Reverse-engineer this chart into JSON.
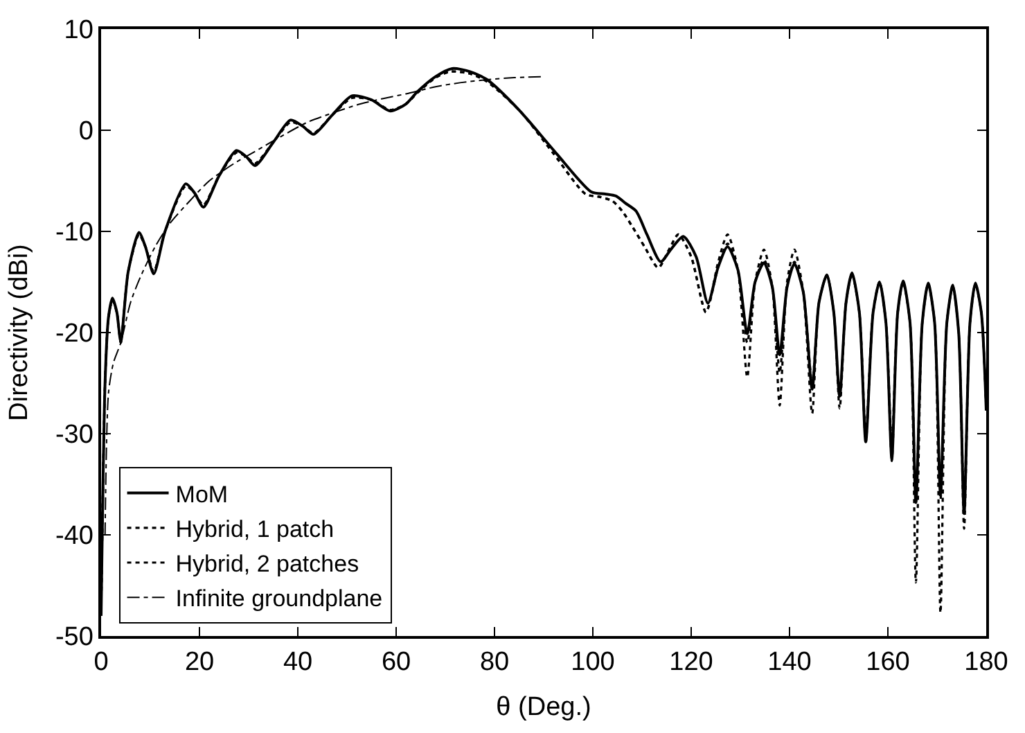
{
  "chart_data": {
    "type": "line",
    "xlabel": "θ (Deg.)",
    "ylabel": "Directivity (dBi)",
    "xlim": [
      0,
      180
    ],
    "xticks": [
      0,
      20,
      40,
      60,
      80,
      100,
      120,
      140,
      160,
      180
    ],
    "ylim": [
      -50,
      10
    ],
    "yticks": [
      -50,
      -40,
      -30,
      -20,
      -10,
      0,
      10
    ],
    "legend": "bottom left",
    "marker": "none",
    "series": [
      {
        "name": "MoM",
        "color": "#000000",
        "line_style": "solid",
        "x": [
          0,
          0.8,
          1.5,
          2.3,
          3.2,
          4,
          5.5,
          7.7,
          9,
          10.7,
          13,
          17.2,
          19,
          20.8,
          24,
          27.5,
          29.5,
          31.3,
          35,
          38.5,
          41,
          43.2,
          47,
          51,
          55,
          58.8,
          62,
          64.3,
          68,
          71.4,
          75,
          78.5,
          85,
          92.6,
          99.7,
          102.5,
          104.7,
          106.6,
          108.8,
          111,
          113.8,
          116,
          118.4,
          121,
          123.4,
          125.5,
          127.4,
          129.5,
          131.4,
          133,
          134.8,
          136.5,
          138,
          139.5,
          141,
          142.8,
          144.6,
          146,
          147.6,
          149,
          150.2,
          151.5,
          152.7,
          154.2,
          155.5,
          157,
          158.3,
          159.6,
          160.8,
          162,
          163.1,
          164.5,
          165.7,
          167,
          168.2,
          169.5,
          170.7,
          172,
          173.2,
          174.4,
          175.5,
          176.7,
          177.8,
          179,
          180
        ],
        "values": [
          -48,
          -25,
          -18.5,
          -16.6,
          -18,
          -20.9,
          -14,
          -10.1,
          -11.5,
          -14.2,
          -10,
          -5.3,
          -6.2,
          -7.6,
          -4.5,
          -2.0,
          -2.6,
          -3.5,
          -1.2,
          1.0,
          0.4,
          -0.4,
          1.5,
          3.4,
          3.0,
          1.9,
          2.6,
          3.8,
          5.3,
          6.1,
          5.8,
          5.0,
          2.0,
          -2.3,
          -6.1,
          -6.3,
          -6.5,
          -7.2,
          -8.0,
          -10.3,
          -13.0,
          -11.7,
          -10.5,
          -12.5,
          -17.1,
          -13.5,
          -11.5,
          -13.8,
          -20.1,
          -15,
          -13.1,
          -15.5,
          -22.2,
          -15.5,
          -13.2,
          -16,
          -25.6,
          -17,
          -14.3,
          -18,
          -26.3,
          -17,
          -14.1,
          -18,
          -30.8,
          -18,
          -15,
          -19,
          -32.5,
          -18,
          -14.9,
          -19,
          -36.8,
          -19,
          -15.1,
          -19,
          -36,
          -19,
          -15.3,
          -20,
          -37.9,
          -19,
          -15.1,
          -18,
          -27.7
        ]
      },
      {
        "name": "Hybrid, 1 patch",
        "color": "#000000",
        "line_style": "dotted",
        "x": [
          0,
          0.8,
          1.5,
          2.3,
          3.2,
          4,
          5.5,
          7.7,
          9,
          10.7,
          13,
          17.2,
          19,
          20.8,
          24,
          27.5,
          29.5,
          31.3,
          35,
          38.5,
          41,
          43.2,
          47,
          51,
          55,
          58.8,
          62,
          64.3,
          68,
          71,
          75,
          78.5,
          85,
          92,
          98.5,
          101.5,
          104,
          106,
          108,
          110.5,
          113.3,
          115.5,
          117.4,
          120,
          123,
          125.5,
          127.4,
          129.5,
          131.4,
          133,
          134.8,
          136.5,
          138,
          139.5,
          141,
          142.8,
          144.6,
          146,
          147.6,
          149,
          150.2,
          151.5,
          152.7,
          154.2,
          155.5,
          157,
          158.3,
          159.6,
          160.8,
          162,
          163.1,
          164.5,
          165.7,
          167,
          168.2,
          169.5,
          170.7,
          172,
          173.2,
          174.4,
          175.5,
          176.7,
          177.8,
          179,
          180
        ],
        "values": [
          -48,
          -25,
          -18.5,
          -16.8,
          -18,
          -21,
          -14,
          -10.3,
          -11.5,
          -14,
          -10,
          -5.5,
          -6.2,
          -7.4,
          -4.5,
          -2.2,
          -2.6,
          -3.3,
          -1.2,
          0.8,
          0.4,
          -0.3,
          1.5,
          3.2,
          3.0,
          2.0,
          2.6,
          3.7,
          5.2,
          5.8,
          5.6,
          4.8,
          2.0,
          -2.3,
          -6.3,
          -6.6,
          -7.0,
          -8.0,
          -9.5,
          -11.5,
          -13.6,
          -11.8,
          -10.3,
          -12.5,
          -18,
          -13.0,
          -10.3,
          -13.8,
          -24.4,
          -15,
          -11.8,
          -15.5,
          -27.2,
          -15,
          -11.8,
          -16,
          -28,
          -17,
          -14.3,
          -18,
          -26.5,
          -17,
          -14.2,
          -18,
          -30.8,
          -18,
          -15,
          -19,
          -32.7,
          -18,
          -15,
          -19,
          -44.7,
          -19,
          -15.2,
          -19,
          -47.7,
          -19,
          -15.4,
          -20,
          -39.4,
          -19,
          -15.2,
          -18,
          -27.7
        ]
      },
      {
        "name": "Hybrid, 2 patches",
        "color": "#000000",
        "line_style": "dotted",
        "x": [
          0,
          0.8,
          1.5,
          2.3,
          3.2,
          4,
          5.5,
          7.7,
          9,
          10.7,
          13,
          17.2,
          19,
          20.8,
          24,
          27.5,
          29.5,
          31.3,
          35,
          38.5,
          41,
          43.2,
          47,
          51,
          55,
          58.8,
          62,
          64.3,
          68,
          71,
          75,
          78.5,
          85,
          92,
          98.5,
          101.5,
          104,
          106,
          108,
          110.5,
          113.3,
          115.5,
          117.4,
          120,
          123,
          125.5,
          127.4,
          129.5,
          131.4,
          133,
          134.8,
          136.5,
          138,
          139.5,
          141,
          142.8,
          144.6,
          146,
          147.6,
          149,
          150.2,
          151.5,
          152.7,
          154.2,
          155.5,
          157,
          158.3,
          159.6,
          160.8,
          162,
          163.1,
          164.5,
          165.7,
          167,
          168.2,
          169.5,
          170.7,
          172,
          173.2,
          174.4,
          175.5,
          176.7,
          177.8,
          179,
          180
        ],
        "values": [
          -48,
          -25,
          -18.5,
          -16.8,
          -18,
          -21,
          -14,
          -10.3,
          -11.5,
          -14,
          -10,
          -5.5,
          -6.2,
          -7.4,
          -4.5,
          -2.2,
          -2.6,
          -3.3,
          -1.2,
          0.8,
          0.4,
          -0.3,
          1.5,
          3.2,
          3.0,
          2.0,
          2.6,
          3.7,
          5.2,
          5.8,
          5.6,
          4.8,
          2.0,
          -2.3,
          -6.3,
          -6.6,
          -7.0,
          -8.0,
          -9.5,
          -11.5,
          -13.6,
          -11.8,
          -10.3,
          -12.5,
          -18,
          -13.5,
          -11.2,
          -13.8,
          -21,
          -15,
          -12.8,
          -15.5,
          -24,
          -15.5,
          -13,
          -16,
          -25,
          -17,
          -14.3,
          -18,
          -27.5,
          -17,
          -14.2,
          -18,
          -30,
          -18,
          -15,
          -19,
          -31,
          -18,
          -15,
          -19,
          -36.5,
          -19,
          -15.2,
          -19,
          -36.5,
          -19,
          -15.4,
          -20,
          -37,
          -19,
          -15.2,
          -18,
          -27.7
        ]
      },
      {
        "name": "Infinite groundplane",
        "color": "#000000",
        "line_style": "dashdot",
        "x": [
          0.8,
          1.5,
          2.5,
          4,
          6,
          8,
          11,
          14,
          18,
          22,
          27,
          32,
          37,
          42,
          47,
          52,
          57,
          62,
          68,
          73,
          78.5,
          84,
          90
        ],
        "values": [
          -40,
          -26,
          -23,
          -21,
          -17,
          -14.5,
          -11.5,
          -9.2,
          -7,
          -5,
          -3.3,
          -1.9,
          -0.5,
          0.8,
          1.7,
          2.5,
          3.1,
          3.6,
          4.3,
          4.7,
          5.0,
          5.2,
          5.3
        ]
      }
    ]
  }
}
